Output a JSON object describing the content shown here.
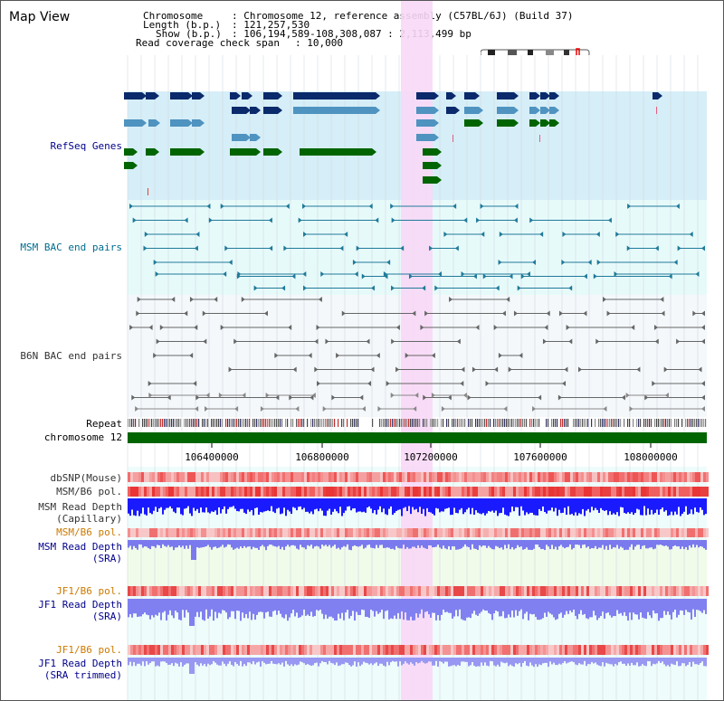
{
  "app": {
    "title": "Map View"
  },
  "header": {
    "chromosome_label": "Chromosome",
    "chromosome_value": ": Chromosome 12, reference assembly (C57BL/6J) (Build 37)",
    "length_label": "Length (b.p.)",
    "length_value": ": 121,257,530",
    "show_label": "Show (b.p.)",
    "show_value": ": 106,194,589-108,308,087 : 2,113,499 bp",
    "coverage_label": "Read coverage check span",
    "coverage_value": ": 10,000"
  },
  "tracks": {
    "refseq": "RefSeq Genes",
    "msm_bac": "MSM BAC end pairs",
    "b6n_bac": "B6N BAC end pairs",
    "repeat": "Repeat",
    "chromosome": "chromosome 12",
    "dbsnp": "dbSNP(Mouse)",
    "msm_b6_pol": "MSM/B6 pol.",
    "msm_depth_cap_1": "MSM Read Depth",
    "msm_depth_cap_2": "(Capillary)",
    "msm_b6_pol_2": "MSM/B6 pol.",
    "msm_depth_sra_1": "MSM Read Depth",
    "msm_depth_sra_2": "(SRA)",
    "jf1_b6_pol": "JF1/B6 pol.",
    "jf1_depth_sra_1": "JF1 Read Depth",
    "jf1_depth_sra_2": "(SRA)",
    "jf1_b6_pol_2": "JF1/B6 pol.",
    "jf1_depth_trim_1": "JF1 Read Depth",
    "jf1_depth_trim_2": "(SRA trimmed)"
  },
  "axis": {
    "ticks": [
      "106400000",
      "106800000",
      "107200000",
      "107600000",
      "108000000"
    ]
  },
  "colors": {
    "refseq_bg": "#d6eef8",
    "bac_bg": "#e7fafa",
    "highlight": "#f8d8f6",
    "gene_navy": "#0a2a6b",
    "gene_light": "#4f93c0",
    "gene_green": "#006400",
    "chromosome_bar": "#006400"
  }
}
